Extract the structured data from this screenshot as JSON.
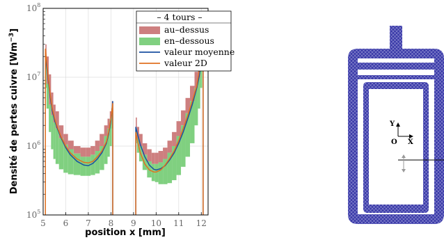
{
  "chart_data": {
    "type": "area",
    "title": "",
    "xlabel": "position x [mm]",
    "ylabel_base": "Densité de pertes cuivre [Wm",
    "ylabel_exp": "−3",
    "ylabel_close": "]",
    "xlim": [
      5,
      12.3
    ],
    "ylim": [
      100000,
      100000000
    ],
    "yscale": "log",
    "x_ticks": [
      "5",
      "6",
      "7",
      "8",
      "9",
      "10",
      "11",
      "12"
    ],
    "y_ticks": [
      {
        "value": 100000,
        "base": "10",
        "exp": "5"
      },
      {
        "value": 1000000,
        "base": "10",
        "exp": "6"
      },
      {
        "value": 10000000,
        "base": "10",
        "exp": "7"
      },
      {
        "value": 100000000,
        "base": "10",
        "exp": "8"
      }
    ],
    "grid": true,
    "legend_position": "top-center",
    "legend_title": "– 4 tours –",
    "segments": [
      {
        "x": [
          5.1,
          5.2,
          5.3,
          5.4,
          5.5,
          5.6,
          5.8,
          6.0,
          6.2,
          6.5,
          6.8,
          7.0,
          7.2,
          7.4,
          7.6,
          7.8,
          7.9,
          8.0,
          8.08
        ],
        "series": [
          {
            "name": "au–dessus",
            "lo": [
              13000000.0,
              7000000.0,
              4000000.0,
              2800000.0,
              2200000.0,
              1800000.0,
              1300000.0,
              1050000.0,
              900000.0,
              780000.0,
              700000.0,
              700000.0,
              750000.0,
              850000.0,
              1000000.0,
              1400000.0,
              1800000.0,
              2500000.0,
              3500000.0
            ],
            "hi": [
              30000000.0,
              20000000.0,
              11000000.0,
              6000000.0,
              4000000.0,
              3200000.0,
              2000000.0,
              1500000.0,
              1200000.0,
              1000000.0,
              950000.0,
              950000.0,
              1000000.0,
              1200000.0,
              1500000.0,
              2000000.0,
              2500000.0,
              3200000.0,
              4500000.0
            ]
          },
          {
            "name": "en–dessous",
            "lo": [
              7000000.0,
              3500000.0,
              1600000.0,
              900000.0,
              650000.0,
              550000.0,
              460000.0,
              410000.0,
              390000.0,
              380000.0,
              370000.0,
              370000.0,
              380000.0,
              400000.0,
              450000.0,
              550000.0,
              700000.0,
              1000000.0,
              1800000.0
            ],
            "hi": [
              15000000.0,
              8000000.0,
              4000000.0,
              2800000.0,
              2200000.0,
              1800000.0,
              1300000.0,
              1050000.0,
              900000.0,
              780000.0,
              700000.0,
              700000.0,
              750000.0,
              850000.0,
              1000000.0,
              1400000.0,
              1800000.0,
              2500000.0,
              3500000.0
            ]
          },
          {
            "name": "valeur moyenne",
            "values": [
              20000000.0,
              11000000.0,
              5500000.0,
              3300000.0,
              2400000.0,
              1900000.0,
              1300000.0,
              950000.0,
              750000.0,
              600000.0,
              530000.0,
              520000.0,
              560000.0,
              650000.0,
              800000.0,
              1100000.0,
              1500000.0,
              2300000.0,
              4500000.0
            ]
          },
          {
            "name": "valeur 2D",
            "values": [
              26000000.0,
              12000000.0,
              6000000.0,
              3600000.0,
              2600000.0,
              2000000.0,
              1350000.0,
              1000000.0,
              800000.0,
              650000.0,
              580000.0,
              570000.0,
              600000.0,
              700000.0,
              850000.0,
              1150000.0,
              1600000.0,
              2500000.0,
              4200000.0
            ]
          }
        ]
      },
      {
        "x": [
          9.1,
          9.2,
          9.3,
          9.5,
          9.7,
          9.9,
          10.0,
          10.2,
          10.4,
          10.6,
          10.8,
          11.0,
          11.2,
          11.4,
          11.6,
          11.8,
          11.9,
          12.0,
          12.08
        ],
        "series": [
          {
            "name": "au–dessus",
            "lo": [
              1800000.0,
              1300000.0,
              1000000.0,
              750000.0,
              600000.0,
              550000.0,
              550000.0,
              580000.0,
              650000.0,
              800000.0,
              1000000.0,
              1400000.0,
              2000000.0,
              3000000.0,
              4500000.0,
              7000000.0,
              10000000.0,
              15000000.0,
              25000000.0
            ],
            "hi": [
              2600000.0,
              1900000.0,
              1500000.0,
              1100000.0,
              900000.0,
              800000.0,
              800000.0,
              850000.0,
              950000.0,
              1200000.0,
              1600000.0,
              2300000.0,
              3300000.0,
              5000000.0,
              7500000.0,
              12000000.0,
              16000000.0,
              24000000.0,
              35000000.0
            ]
          },
          {
            "name": "en–dessous",
            "lo": [
              1100000.0,
              800000.0,
              600000.0,
              450000.0,
              350000.0,
              310000.0,
              300000.0,
              280000.0,
              280000.0,
              290000.0,
              320000.0,
              380000.0,
              500000.0,
              700000.0,
              1100000.0,
              2000000.0,
              3500000.0,
              7000000.0,
              13000000.0
            ],
            "hi": [
              1800000.0,
              1300000.0,
              1000000.0,
              750000.0,
              600000.0,
              550000.0,
              550000.0,
              580000.0,
              650000.0,
              800000.0,
              1000000.0,
              1400000.0,
              2000000.0,
              3000000.0,
              4500000.0,
              7000000.0,
              10000000.0,
              15000000.0,
              25000000.0
            ]
          },
          {
            "name": "valeur moyenne",
            "values": [
              1900000.0,
              1400000.0,
              1050000.0,
              700000.0,
              530000.0,
              460000.0,
              450000.0,
              470000.0,
              520000.0,
              630000.0,
              800000.0,
              1100000.0,
              1600000.0,
              2500000.0,
              4000000.0,
              7000000.0,
              10000000.0,
              17000000.0,
              30000000.0
            ]
          },
          {
            "name": "valeur 2D",
            "values": [
              1600000.0,
              1100000.0,
              800000.0,
              550000.0,
              450000.0,
              420000.0,
              420000.0,
              450000.0,
              530000.0,
              660000.0,
              850000.0,
              1200000.0,
              1800000.0,
              2800000.0,
              4500000.0,
              7500000.0,
              12000000.0,
              20000000.0,
              39000000.0
            ]
          }
        ]
      }
    ],
    "series_colors": {
      "au–dessus": "#cd7f7f",
      "en–dessous": "#80d080",
      "valeur moyenne": "#1a4fa0",
      "valeur 2D": "#e07020"
    }
  },
  "inset": {
    "axis_y": "Y",
    "origin": "O",
    "axis_x": "X",
    "mesh_color": "#2a2a9a"
  }
}
